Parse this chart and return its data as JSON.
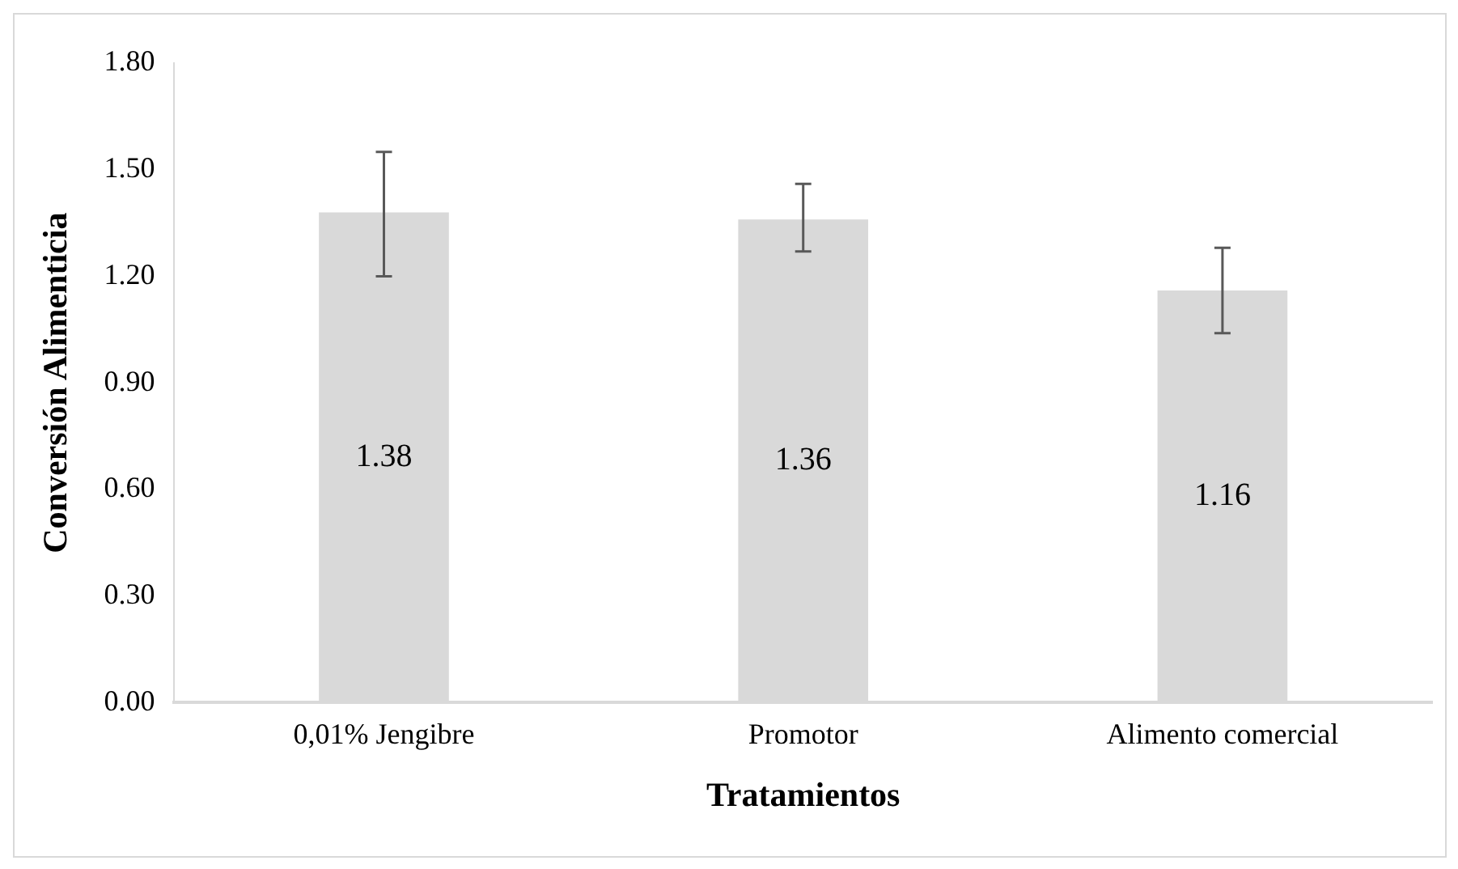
{
  "chart_data": {
    "type": "bar",
    "xlabel": "Tratamientos",
    "ylabel": "Conversión Alimenticia",
    "categories": [
      "0,01% Jengibre",
      "Promotor",
      "Alimento comercial"
    ],
    "values": [
      1.38,
      1.36,
      1.16
    ],
    "color": "#d9d9d9",
    "errors": [
      [
        1.2,
        1.55
      ],
      [
        1.27,
        1.46
      ],
      [
        1.04,
        1.28
      ]
    ],
    "ylim": [
      0,
      1.8
    ],
    "yticks": [
      {
        "value": 0,
        "label": "0.00"
      },
      {
        "value": 0.3,
        "label": "0.30"
      },
      {
        "value": 0.6,
        "label": "0.60"
      },
      {
        "value": 0.9,
        "label": "0.90"
      },
      {
        "value": 1.2,
        "label": "1.20"
      },
      {
        "value": 1.5,
        "label": "1.50"
      },
      {
        "value": 1.8,
        "label": "1.80"
      }
    ],
    "data_labels": true,
    "grid": false,
    "legend": false
  }
}
